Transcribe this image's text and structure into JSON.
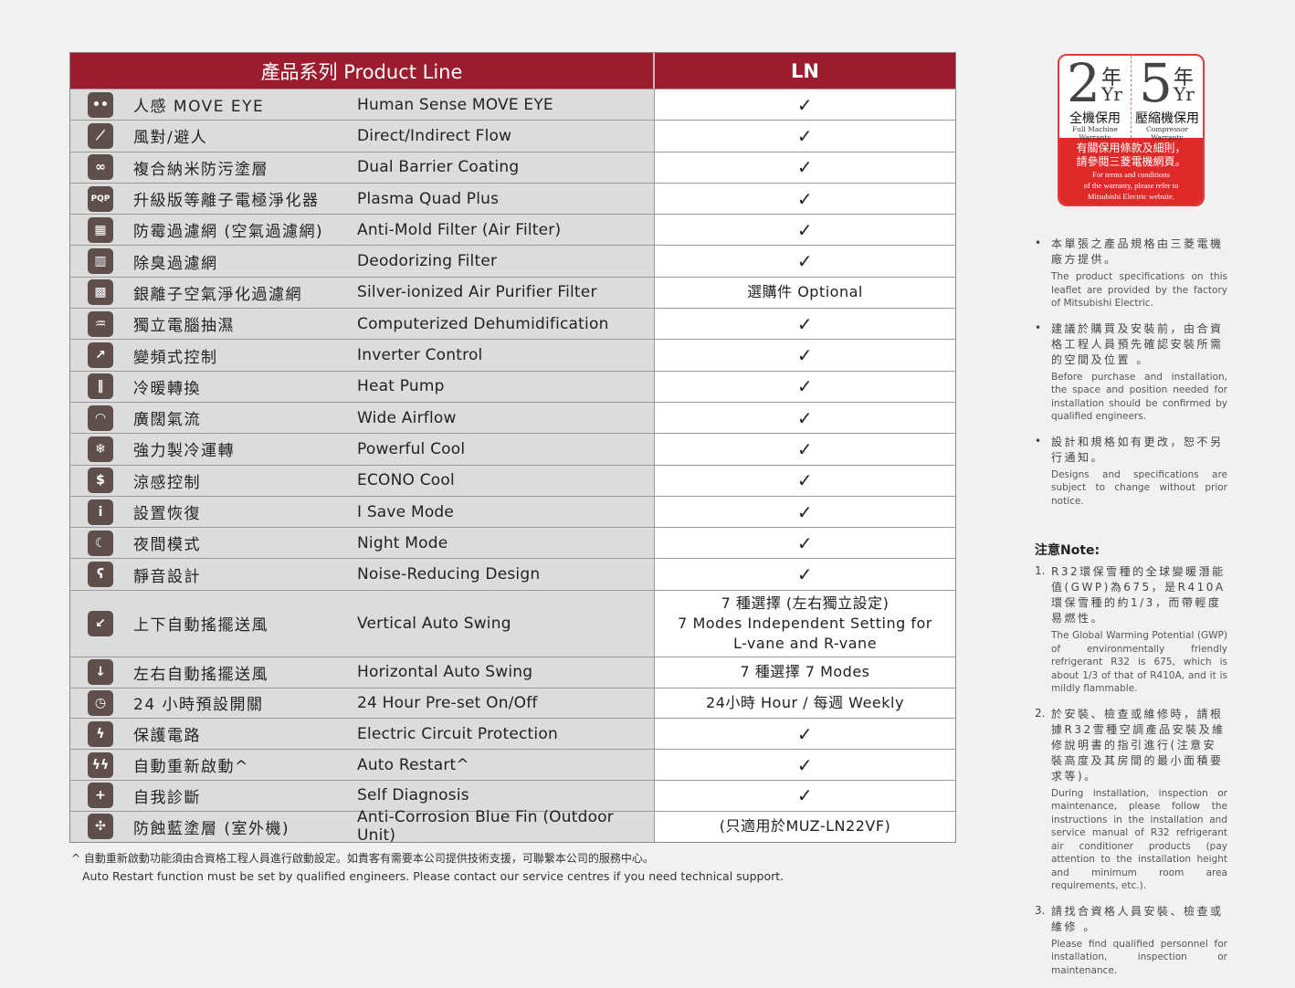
{
  "table": {
    "header_feature": "產品系列 Product Line",
    "header_model": "LN",
    "rows": [
      {
        "icon": "move-eye-icon",
        "glyph": "••",
        "zh": "人感 MOVE EYE",
        "en": "Human Sense MOVE EYE",
        "ln": "✓"
      },
      {
        "icon": "direct-indirect-flow-icon",
        "glyph": "⟋",
        "zh": "風對/避人",
        "en": "Direct/Indirect Flow",
        "ln": "✓"
      },
      {
        "icon": "dual-barrier-coating-icon",
        "glyph": "∞",
        "zh": "複合納米防污塗層",
        "en": "Dual Barrier Coating",
        "ln": "✓"
      },
      {
        "icon": "plasma-quad-plus-icon",
        "glyph": "PQP",
        "zh": "升級版等離子電極淨化器",
        "en": "Plasma Quad Plus",
        "ln": "✓"
      },
      {
        "icon": "anti-mold-filter-icon",
        "glyph": "▦",
        "zh": "防霉過濾網 (空氣過濾網)",
        "en": "Anti-Mold Filter (Air Filter)",
        "ln": "✓"
      },
      {
        "icon": "deodorizing-filter-icon",
        "glyph": "▥",
        "zh": "除臭過濾網",
        "en": "Deodorizing Filter",
        "ln": "✓"
      },
      {
        "icon": "silver-ion-filter-icon",
        "glyph": "▩",
        "zh": "銀離子空氣淨化過濾網",
        "en": "Silver-ionized Air Purifier Filter",
        "ln": "選購件 Optional"
      },
      {
        "icon": "dehumidification-icon",
        "glyph": "♒",
        "zh": "獨立電腦抽濕",
        "en": "Computerized Dehumidification",
        "ln": "✓"
      },
      {
        "icon": "inverter-icon",
        "glyph": "↗",
        "zh": "變頻式控制",
        "en": "Inverter Control",
        "ln": "✓"
      },
      {
        "icon": "heat-pump-icon",
        "glyph": "‖",
        "zh": "冷暖轉換",
        "en": "Heat Pump",
        "ln": "✓"
      },
      {
        "icon": "wide-airflow-icon",
        "glyph": "◠",
        "zh": "廣闊氣流",
        "en": "Wide Airflow",
        "ln": "✓"
      },
      {
        "icon": "powerful-cool-icon",
        "glyph": "❄",
        "zh": "強力製冷運轉",
        "en": "Powerful Cool",
        "ln": "✓"
      },
      {
        "icon": "econo-cool-icon",
        "glyph": "$",
        "zh": "涼感控制",
        "en": "ECONO Cool",
        "ln": "✓"
      },
      {
        "icon": "i-save-icon",
        "glyph": "i",
        "zh": "設置恢復",
        "en": "I Save Mode",
        "ln": "✓"
      },
      {
        "icon": "night-mode-icon",
        "glyph": "☾",
        "zh": "夜間模式",
        "en": "Night Mode",
        "ln": "✓"
      },
      {
        "icon": "noise-reducing-icon",
        "glyph": "ʕ",
        "zh": "靜音設計",
        "en": "Noise-Reducing Design",
        "ln": "✓"
      },
      {
        "icon": "vertical-swing-icon",
        "glyph": "↙",
        "zh": "上下自動搖擺送風",
        "en": "Vertical Auto Swing",
        "ln": "7 種選擇 (左右獨立設定)\n7 Modes Independent Setting for\nL-vane and R-vane"
      },
      {
        "icon": "horizontal-swing-icon",
        "glyph": "↓",
        "zh": "左右自動搖擺送風",
        "en": "Horizontal Auto Swing",
        "ln": "7 種選擇 7 Modes"
      },
      {
        "icon": "timer-24h-icon",
        "glyph": "◷",
        "zh": "24 小時預設開關",
        "en": "24 Hour Pre-set On/Off",
        "ln": "24小時 Hour / 每週 Weekly"
      },
      {
        "icon": "circuit-protection-icon",
        "glyph": "ϟ",
        "zh": "保護電路",
        "en": "Electric Circuit Protection",
        "ln": "✓"
      },
      {
        "icon": "auto-restart-icon",
        "glyph": "ϟϟ",
        "zh": "自動重新啟動^",
        "en": "Auto Restart^",
        "ln": "✓"
      },
      {
        "icon": "self-diagnosis-icon",
        "glyph": "+",
        "zh": "自我診斷",
        "en": "Self Diagnosis",
        "ln": "✓"
      },
      {
        "icon": "blue-fin-icon",
        "glyph": "✣",
        "zh": "防蝕藍塗層 (室外機)",
        "en": "Anti-Corrosion Blue Fin (Outdoor Unit)",
        "ln": "(只適用於MUZ-LN22VF)"
      }
    ]
  },
  "footnote": {
    "zh": "^ 自動重新啟動功能須由合資格工程人員進行啟動設定。如貴客有需要本公司提供技術支援，可聯繫本公司的服務中心。",
    "en": "Auto Restart function must be set by qualified engineers. Please contact our service centres if you need technical support."
  },
  "warranty": {
    "full_years": "2",
    "compressor_years": "5",
    "year_zh": "年",
    "year_en": "Yr",
    "full_zh": "全機保用",
    "full_en": "Full Machine Warranty",
    "comp_zh": "壓縮機保用",
    "comp_en": "Compressor Warranty",
    "terms_zh_1": "有關保用條款及細則，",
    "terms_zh_2": "請參閱三菱電機網頁。",
    "terms_en_1": "For terms and conditions",
    "terms_en_2": "of the warranty, please refer to",
    "terms_en_3": "Mitsubishi Electric website."
  },
  "notes": {
    "bullets": [
      {
        "zh": "本單張之產品規格由三菱電機廠方提供。",
        "en": "The product specifications on this leaflet are provided by the factory of Mitsubishi Electric."
      },
      {
        "zh": "建議於購買及安裝前，由合資格工程人員預先確認安裝所需的空間及位置 。",
        "en": "Before purchase and installation, the space and position needed for installation should be confirmed by qualified engineers."
      },
      {
        "zh": "設計和規格如有更改，恕不另行通知。",
        "en": "Designs and specifications are subject to change without prior notice."
      }
    ],
    "title": "注意Note:",
    "items": [
      {
        "n": "1.",
        "zh": "R32環保雪種的全球變暖潛能值(GWP)為675，是R410A環保雪種的約1/3，而帶輕度易燃性。",
        "en": "The Global Warming Potential (GWP) of environmentally friendly refrigerant R32 is 675, which is about 1/3 of that of R410A, and it is mildly flammable."
      },
      {
        "n": "2.",
        "zh": "於安裝、檢查或維修時，請根據R32雪種空調產品安裝及維修說明書的指引進行(注意安裝高度及其房間的最小面積要求等)。",
        "en": "During installation, inspection or maintenance, please follow the instructions in the installation and service manual of R32 refrigerant air conditioner products (pay attention to the installation height and minimum room area requirements, etc.)."
      },
      {
        "n": "3.",
        "zh": "請找合資格人員安裝、檢查或維修 。",
        "en": "Please find qualified personnel for installation, inspection or maintenance."
      }
    ]
  },
  "colors": {
    "header": "#9b1c2e",
    "icon": "#5e4f4a",
    "badge": "#e02a2a"
  }
}
